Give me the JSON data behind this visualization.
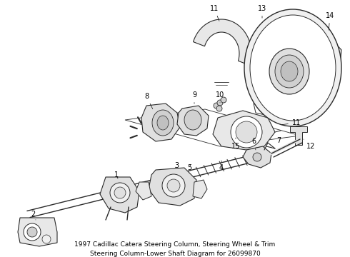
{
  "title": "1997 Cadillac Catera Steering Column, Steering Wheel & Trim\nSteering Column-Lower Shaft Diagram for 26099870",
  "background_color": "#ffffff",
  "title_fontsize": 6.5,
  "title_color": "#000000",
  "figsize": [
    4.9,
    3.6
  ],
  "dpi": 100,
  "line_color": "#2a2a2a",
  "fill_light": "#e8e8e8",
  "fill_mid": "#cccccc",
  "fill_white": "#ffffff"
}
